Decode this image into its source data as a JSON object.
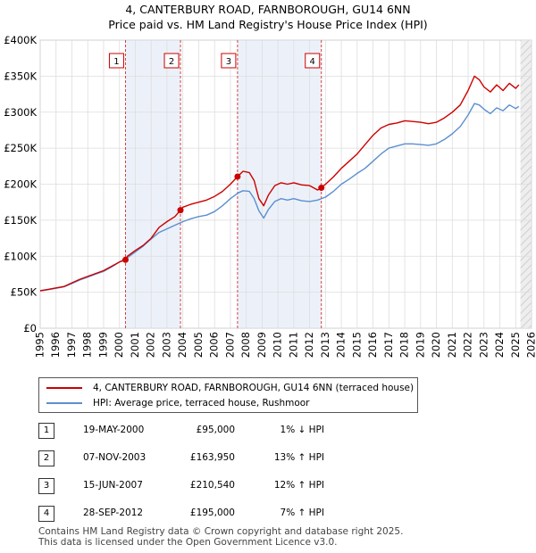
{
  "title_line1": "4, CANTERBURY ROAD, FARNBOROUGH, GU14 6NN",
  "title_line2": "Price paid vs. HM Land Registry's House Price Index (HPI)",
  "chart_data": {
    "type": "line",
    "title": "4, CANTERBURY ROAD, FARNBOROUGH, GU14 6NN — Price paid vs. HM Land Registry's House Price Index (HPI)",
    "xlabel": "",
    "ylabel": "",
    "xlim": [
      1995.0,
      2026.0
    ],
    "ylim": [
      0,
      400000
    ],
    "y_ticks": [
      0,
      50000,
      100000,
      150000,
      200000,
      250000,
      300000,
      350000,
      400000
    ],
    "y_tick_labels": [
      "£0",
      "£50K",
      "£100K",
      "£150K",
      "£200K",
      "£250K",
      "£300K",
      "£350K",
      "£400K"
    ],
    "x_ticks": [
      1995,
      1996,
      1997,
      1998,
      1999,
      2000,
      2001,
      2002,
      2003,
      2004,
      2005,
      2006,
      2007,
      2008,
      2009,
      2010,
      2011,
      2012,
      2013,
      2014,
      2015,
      2016,
      2017,
      2018,
      2019,
      2020,
      2021,
      2022,
      2023,
      2024,
      2025,
      2026
    ],
    "grid": true,
    "future_shade_from": 2025.3,
    "sale_bands": [
      [
        2000.38,
        2003.85
      ],
      [
        2007.45,
        2012.74
      ]
    ],
    "series": [
      {
        "name": "4, CANTERBURY ROAD, FARNBOROUGH, GU14 6NN (terraced house)",
        "color": "#cc0000",
        "x": [
          1995.0,
          1995.5,
          1996.0,
          1996.5,
          1997.0,
          1997.5,
          1998.0,
          1998.5,
          1999.0,
          1999.5,
          2000.0,
          2000.38,
          2000.5,
          2001.0,
          2001.5,
          2002.0,
          2002.5,
          2003.0,
          2003.5,
          2003.85,
          2004.0,
          2004.5,
          2005.0,
          2005.5,
          2006.0,
          2006.5,
          2007.0,
          2007.45,
          2007.8,
          2008.2,
          2008.5,
          2008.8,
          2009.1,
          2009.4,
          2009.8,
          2010.2,
          2010.6,
          2011.0,
          2011.5,
          2012.0,
          2012.5,
          2012.74,
          2013.0,
          2013.5,
          2014.0,
          2014.5,
          2015.0,
          2015.5,
          2016.0,
          2016.5,
          2017.0,
          2017.5,
          2018.0,
          2018.5,
          2019.0,
          2019.5,
          2020.0,
          2020.5,
          2021.0,
          2021.5,
          2022.0,
          2022.4,
          2022.7,
          2023.0,
          2023.4,
          2023.8,
          2024.2,
          2024.6,
          2025.0,
          2025.2
        ],
        "values": [
          52000,
          54000,
          56000,
          58000,
          63000,
          68000,
          72000,
          76000,
          80000,
          86000,
          92000,
          95000,
          100000,
          108000,
          115000,
          125000,
          140000,
          148000,
          155000,
          163950,
          168000,
          172000,
          175000,
          178000,
          183000,
          190000,
          200000,
          210540,
          218000,
          216000,
          205000,
          180000,
          170000,
          185000,
          198000,
          202000,
          200000,
          202000,
          199000,
          198000,
          192000,
          195000,
          200000,
          210000,
          222000,
          232000,
          242000,
          255000,
          268000,
          278000,
          283000,
          285000,
          288000,
          287000,
          286000,
          284000,
          286000,
          292000,
          300000,
          310000,
          330000,
          350000,
          345000,
          335000,
          328000,
          338000,
          330000,
          340000,
          333000,
          338000
        ]
      },
      {
        "name": "HPI: Average price, terraced house, Rushmoor",
        "color": "#5b8fd0",
        "x": [
          1995.0,
          1995.5,
          1996.0,
          1996.5,
          1997.0,
          1997.5,
          1998.0,
          1998.5,
          1999.0,
          1999.5,
          2000.0,
          2000.5,
          2001.0,
          2001.5,
          2002.0,
          2002.5,
          2003.0,
          2003.5,
          2004.0,
          2004.5,
          2005.0,
          2005.5,
          2006.0,
          2006.5,
          2007.0,
          2007.5,
          2007.8,
          2008.2,
          2008.5,
          2008.8,
          2009.1,
          2009.4,
          2009.8,
          2010.2,
          2010.6,
          2011.0,
          2011.5,
          2012.0,
          2012.5,
          2013.0,
          2013.5,
          2014.0,
          2014.5,
          2015.0,
          2015.5,
          2016.0,
          2016.5,
          2017.0,
          2017.5,
          2018.0,
          2018.5,
          2019.0,
          2019.5,
          2020.0,
          2020.5,
          2021.0,
          2021.5,
          2022.0,
          2022.4,
          2022.7,
          2023.0,
          2023.4,
          2023.8,
          2024.2,
          2024.6,
          2025.0,
          2025.2
        ],
        "values": [
          52000,
          53500,
          55500,
          57500,
          62000,
          67000,
          71000,
          75000,
          79000,
          85000,
          92000,
          98000,
          106000,
          114000,
          124000,
          133000,
          138000,
          143000,
          148000,
          152000,
          155000,
          157000,
          162000,
          170000,
          180000,
          188000,
          191000,
          190000,
          180000,
          163000,
          153000,
          165000,
          176000,
          180000,
          178000,
          180000,
          177000,
          176000,
          178000,
          182000,
          190000,
          200000,
          207000,
          215000,
          222000,
          232000,
          242000,
          250000,
          253000,
          256000,
          256000,
          255000,
          254000,
          256000,
          262000,
          270000,
          280000,
          296000,
          312000,
          310000,
          304000,
          298000,
          306000,
          302000,
          310000,
          305000,
          308000
        ]
      }
    ],
    "sales": [
      {
        "n": "1",
        "year": 2000.38,
        "price": 95000
      },
      {
        "n": "2",
        "year": 2003.85,
        "price": 163950
      },
      {
        "n": "3",
        "year": 2007.45,
        "price": 210540
      },
      {
        "n": "4",
        "year": 2012.74,
        "price": 195000
      }
    ]
  },
  "legend": {
    "property": "4, CANTERBURY ROAD, FARNBOROUGH, GU14 6NN (terraced house)",
    "hpi": "HPI: Average price, terraced house, Rushmoor"
  },
  "transactions": [
    {
      "n": "1",
      "date": "19-MAY-2000",
      "price": "£95,000",
      "hpi": "1% ↓ HPI"
    },
    {
      "n": "2",
      "date": "07-NOV-2003",
      "price": "£163,950",
      "hpi": "13% ↑ HPI"
    },
    {
      "n": "3",
      "date": "15-JUN-2007",
      "price": "£210,540",
      "hpi": "12% ↑ HPI"
    },
    {
      "n": "4",
      "date": "28-SEP-2012",
      "price": "£195,000",
      "hpi": "7% ↑ HPI"
    }
  ],
  "footer_line1": "Contains HM Land Registry data © Crown copyright and database right 2025.",
  "footer_line2": "This data is licensed under the Open Government Licence v3.0."
}
